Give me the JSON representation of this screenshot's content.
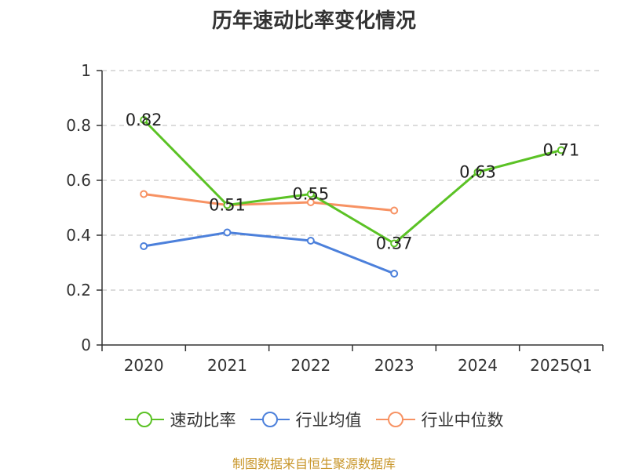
{
  "chart_data": {
    "type": "line",
    "title": "历年速动比率变化情况",
    "categories": [
      "2020",
      "2021",
      "2022",
      "2023",
      "2024",
      "2025Q1"
    ],
    "ylim": [
      0,
      1
    ],
    "yticks": [
      "0",
      "0.2",
      "0.4",
      "0.6",
      "0.8",
      "1"
    ],
    "ytick_values": [
      0,
      0.2,
      0.4,
      0.6,
      0.8,
      1
    ],
    "grid": true,
    "legend_position": "bottom",
    "series": [
      {
        "name": "速动比率",
        "color": "#5bc225",
        "values": [
          0.82,
          0.51,
          0.55,
          0.37,
          0.63,
          0.71
        ],
        "labels": [
          "0.82",
          "0.51",
          "0.55",
          "0.37",
          "0.63",
          "0.71"
        ],
        "show_labels": true
      },
      {
        "name": "行业均值",
        "color": "#4c80db",
        "values": [
          0.36,
          0.41,
          0.38,
          0.26,
          null,
          null
        ],
        "show_labels": false
      },
      {
        "name": "行业中位数",
        "color": "#f79263",
        "values": [
          0.55,
          0.51,
          0.52,
          0.49,
          null,
          null
        ],
        "show_labels": false
      }
    ]
  },
  "source": "制图数据来自恒生聚源数据库"
}
